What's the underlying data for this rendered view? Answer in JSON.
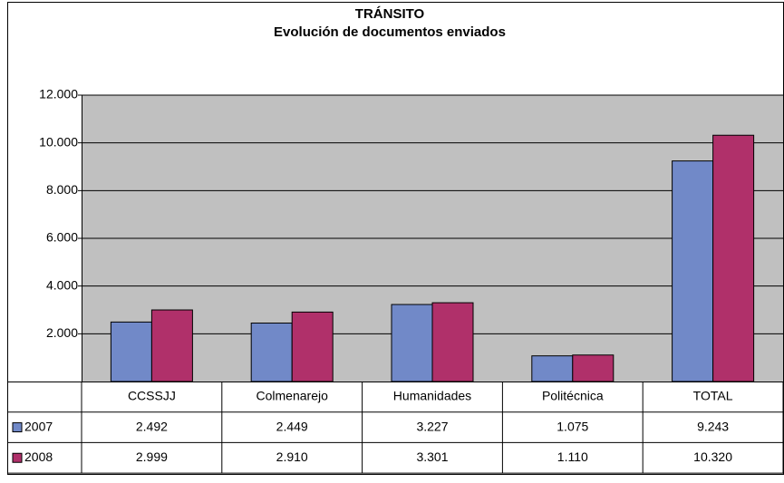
{
  "chart_data": {
    "type": "bar",
    "title": "TRÁNSITO",
    "subtitle": "Evolución de documentos enviados",
    "categories": [
      "CCSSJJ",
      "Colmenarejo",
      "Humanidades",
      "Politécnica",
      "TOTAL"
    ],
    "series": [
      {
        "name": "2007",
        "color": "#7189c8",
        "values": [
          2492,
          2449,
          3227,
          1075,
          9243
        ],
        "value_labels": [
          "2.492",
          "2.449",
          "3.227",
          "1.075",
          "9.243"
        ]
      },
      {
        "name": "2008",
        "color": "#b0306a",
        "values": [
          2999,
          2910,
          3301,
          1110,
          10320
        ],
        "value_labels": [
          "2.999",
          "2.910",
          "3.301",
          "1.110",
          "10.320"
        ]
      }
    ],
    "ylim": [
      0,
      12000
    ],
    "yticks": [
      {
        "value": 2000,
        "label": "2.000"
      },
      {
        "value": 4000,
        "label": "4.000"
      },
      {
        "value": 6000,
        "label": "6.000"
      },
      {
        "value": 8000,
        "label": "8.000"
      },
      {
        "value": 10000,
        "label": "10.000"
      },
      {
        "value": 12000,
        "label": "12.000"
      }
    ],
    "grid": true,
    "plot_background": "#c0c0c0"
  }
}
